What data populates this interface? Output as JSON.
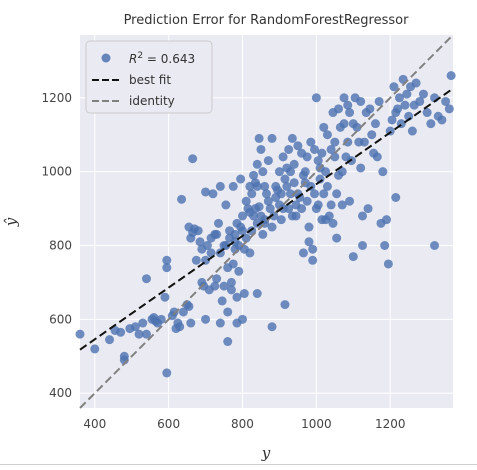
{
  "chart_data": {
    "type": "scatter",
    "title": "Prediction Error for RandomForestRegressor",
    "xlabel": "y",
    "ylabel": "ŷ",
    "xlim": [
      360,
      1370
    ],
    "ylim": [
      360,
      1370
    ],
    "xticks": [
      "400",
      "600",
      "800",
      "1000",
      "1200"
    ],
    "xtick_values": [
      400,
      600,
      800,
      1000,
      1200
    ],
    "yticks": [
      "400",
      "600",
      "800",
      "1000",
      "1200"
    ],
    "ytick_values": [
      400,
      600,
      800,
      1000,
      1200
    ],
    "grid": true,
    "legend_position": "top-left",
    "legend": {
      "r2_label": "R",
      "r2_value": " = 0.643",
      "best_fit_label": "best fit",
      "identity_label": "identity"
    },
    "best_fit": {
      "x": [
        360,
        1370
      ],
      "y": [
        518,
        1225
      ]
    },
    "identity": {
      "x": [
        360,
        1370
      ],
      "y": [
        360,
        1370
      ]
    },
    "colors": {
      "points": "#4c72b0",
      "best_fit": "#111111",
      "identity": "#808080",
      "background": "#eaeaf2",
      "grid": "#ffffff"
    },
    "points": [
      [
        360,
        560
      ],
      [
        400,
        520
      ],
      [
        440,
        545
      ],
      [
        455,
        570
      ],
      [
        470,
        565
      ],
      [
        480,
        500
      ],
      [
        480,
        490
      ],
      [
        495,
        575
      ],
      [
        510,
        580
      ],
      [
        520,
        560
      ],
      [
        530,
        590
      ],
      [
        540,
        560
      ],
      [
        540,
        710
      ],
      [
        555,
        600
      ],
      [
        560,
        605
      ],
      [
        565,
        595
      ],
      [
        570,
        590
      ],
      [
        580,
        600
      ],
      [
        590,
        660
      ],
      [
        595,
        760
      ],
      [
        595,
        740
      ],
      [
        595,
        455
      ],
      [
        610,
        610
      ],
      [
        615,
        620
      ],
      [
        620,
        575
      ],
      [
        625,
        590
      ],
      [
        630,
        580
      ],
      [
        635,
        925
      ],
      [
        640,
        620
      ],
      [
        650,
        640
      ],
      [
        655,
        635
      ],
      [
        655,
        850
      ],
      [
        660,
        820
      ],
      [
        660,
        590
      ],
      [
        665,
        835
      ],
      [
        665,
        1035
      ],
      [
        670,
        845
      ],
      [
        675,
        760
      ],
      [
        680,
        840
      ],
      [
        685,
        810
      ],
      [
        690,
        700
      ],
      [
        690,
        790
      ],
      [
        695,
        690
      ],
      [
        700,
        945
      ],
      [
        700,
        760
      ],
      [
        700,
        600
      ],
      [
        705,
        800
      ],
      [
        710,
        680
      ],
      [
        715,
        780
      ],
      [
        715,
        820
      ],
      [
        720,
        940
      ],
      [
        725,
        830
      ],
      [
        725,
        690
      ],
      [
        730,
        830
      ],
      [
        730,
        710
      ],
      [
        735,
        860
      ],
      [
        740,
        590
      ],
      [
        740,
        780
      ],
      [
        740,
        960
      ],
      [
        745,
        650
      ],
      [
        750,
        690
      ],
      [
        750,
        800
      ],
      [
        755,
        800
      ],
      [
        755,
        910
      ],
      [
        760,
        620
      ],
      [
        760,
        540
      ],
      [
        760,
        740
      ],
      [
        765,
        820
      ],
      [
        765,
        840
      ],
      [
        770,
        680
      ],
      [
        770,
        700
      ],
      [
        775,
        750
      ],
      [
        775,
        960
      ],
      [
        780,
        790
      ],
      [
        780,
        810
      ],
      [
        780,
        830
      ],
      [
        785,
        660
      ],
      [
        785,
        860
      ],
      [
        785,
        590
      ],
      [
        790,
        730
      ],
      [
        790,
        800
      ],
      [
        795,
        980
      ],
      [
        795,
        850
      ],
      [
        800,
        840
      ],
      [
        800,
        600
      ],
      [
        800,
        880
      ],
      [
        805,
        670
      ],
      [
        805,
        790
      ],
      [
        810,
        920
      ],
      [
        810,
        820
      ],
      [
        815,
        900
      ],
      [
        820,
        960
      ],
      [
        820,
        890
      ],
      [
        820,
        780
      ],
      [
        825,
        840
      ],
      [
        825,
        940
      ],
      [
        830,
        880
      ],
      [
        830,
        990
      ],
      [
        835,
        970
      ],
      [
        835,
        900
      ],
      [
        840,
        960
      ],
      [
        840,
        860
      ],
      [
        840,
        1020
      ],
      [
        840,
        670
      ],
      [
        845,
        1090
      ],
      [
        845,
        905
      ],
      [
        850,
        880
      ],
      [
        850,
        1060
      ],
      [
        855,
        830
      ],
      [
        855,
        1000
      ],
      [
        860,
        870
      ],
      [
        860,
        960
      ],
      [
        860,
        860
      ],
      [
        865,
        940
      ],
      [
        870,
        920
      ],
      [
        870,
        1030
      ],
      [
        875,
        900
      ],
      [
        880,
        850
      ],
      [
        880,
        1090
      ],
      [
        880,
        580
      ],
      [
        885,
        880
      ],
      [
        890,
        960
      ],
      [
        890,
        930
      ],
      [
        895,
        950
      ],
      [
        900,
        1000
      ],
      [
        900,
        910
      ],
      [
        905,
        940
      ],
      [
        905,
        870
      ],
      [
        910,
        1040
      ],
      [
        910,
        900
      ],
      [
        915,
        980
      ],
      [
        915,
        640
      ],
      [
        920,
        960
      ],
      [
        920,
        1010
      ],
      [
        925,
        900
      ],
      [
        925,
        1060
      ],
      [
        930,
        1000
      ],
      [
        930,
        940
      ],
      [
        935,
        880
      ],
      [
        935,
        1090
      ],
      [
        940,
        1020
      ],
      [
        940,
        970
      ],
      [
        945,
        910
      ],
      [
        945,
        880
      ],
      [
        950,
        1070
      ],
      [
        950,
        940
      ],
      [
        955,
        930
      ],
      [
        960,
        1050
      ],
      [
        960,
        900
      ],
      [
        965,
        990
      ],
      [
        965,
        780
      ],
      [
        970,
        1000
      ],
      [
        970,
        970
      ],
      [
        975,
        920
      ],
      [
        975,
        1040
      ],
      [
        980,
        850
      ],
      [
        980,
        810
      ],
      [
        985,
        1080
      ],
      [
        985,
        960
      ],
      [
        990,
        760
      ],
      [
        990,
        790
      ],
      [
        995,
        1060
      ],
      [
        995,
        940
      ],
      [
        1000,
        1200
      ],
      [
        1000,
        900
      ],
      [
        1005,
        1030
      ],
      [
        1005,
        910
      ],
      [
        1010,
        1010
      ],
      [
        1010,
        980
      ],
      [
        1015,
        1050
      ],
      [
        1015,
        870
      ],
      [
        1020,
        1120
      ],
      [
        1020,
        940
      ],
      [
        1025,
        870
      ],
      [
        1025,
        1000
      ],
      [
        1030,
        1100
      ],
      [
        1030,
        960
      ],
      [
        1035,
        880
      ],
      [
        1040,
        1060
      ],
      [
        1040,
        910
      ],
      [
        1045,
        1160
      ],
      [
        1045,
        860
      ],
      [
        1050,
        1080
      ],
      [
        1050,
        1040
      ],
      [
        1055,
        940
      ],
      [
        1055,
        820
      ],
      [
        1060,
        1170
      ],
      [
        1060,
        990
      ],
      [
        1065,
        1120
      ],
      [
        1070,
        1000
      ],
      [
        1070,
        910
      ],
      [
        1075,
        1200
      ],
      [
        1075,
        1130
      ],
      [
        1080,
        1040
      ],
      [
        1085,
        1180
      ],
      [
        1085,
        1080
      ],
      [
        1090,
        1160
      ],
      [
        1090,
        920
      ],
      [
        1095,
        1030
      ],
      [
        1100,
        1130
      ],
      [
        1100,
        770
      ],
      [
        1105,
        1200
      ],
      [
        1110,
        1120
      ],
      [
        1115,
        1080
      ],
      [
        1120,
        1190
      ],
      [
        1120,
        1010
      ],
      [
        1125,
        880
      ],
      [
        1125,
        800
      ],
      [
        1130,
        1080
      ],
      [
        1135,
        1160
      ],
      [
        1140,
        900
      ],
      [
        1145,
        1170
      ],
      [
        1150,
        1100
      ],
      [
        1155,
        1050
      ],
      [
        1160,
        1130
      ],
      [
        1165,
        1040
      ],
      [
        1170,
        1190
      ],
      [
        1175,
        860
      ],
      [
        1180,
        1000
      ],
      [
        1185,
        800
      ],
      [
        1190,
        870
      ],
      [
        1195,
        750
      ],
      [
        1200,
        1110
      ],
      [
        1205,
        1140
      ],
      [
        1210,
        1230
      ],
      [
        1215,
        930
      ],
      [
        1215,
        1160
      ],
      [
        1220,
        1170
      ],
      [
        1225,
        1200
      ],
      [
        1230,
        1130
      ],
      [
        1235,
        1250
      ],
      [
        1240,
        1180
      ],
      [
        1245,
        1210
      ],
      [
        1250,
        1150
      ],
      [
        1255,
        1230
      ],
      [
        1260,
        1110
      ],
      [
        1265,
        1180
      ],
      [
        1270,
        1240
      ],
      [
        1280,
        1190
      ],
      [
        1290,
        1210
      ],
      [
        1300,
        1160
      ],
      [
        1310,
        1130
      ],
      [
        1320,
        1200
      ],
      [
        1320,
        800
      ],
      [
        1330,
        1150
      ],
      [
        1340,
        1140
      ],
      [
        1350,
        1190
      ],
      [
        1360,
        1170
      ],
      [
        1365,
        1260
      ]
    ]
  }
}
